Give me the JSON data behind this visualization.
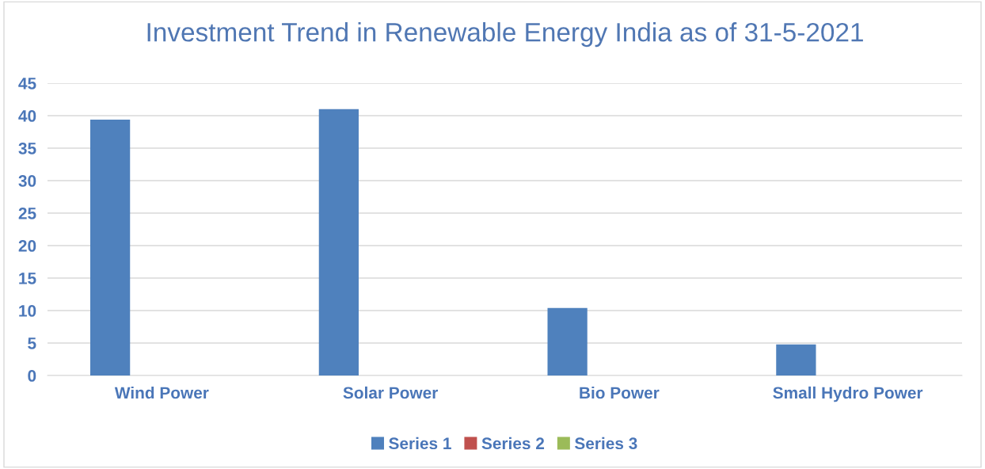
{
  "chart_data": {
    "type": "bar",
    "title": "Investment Trend in Renewable Energy India as of 31-5-2021",
    "categories": [
      "Wind Power",
      "Solar Power",
      "Bio Power",
      "Small Hydro Power"
    ],
    "series": [
      {
        "name": "Series 1",
        "color": "#4f81bd",
        "values": [
          39.4,
          41.0,
          10.4,
          4.8
        ]
      },
      {
        "name": "Series 2",
        "color": "#c0504d",
        "values": [
          null,
          null,
          null,
          null
        ]
      },
      {
        "name": "Series 3",
        "color": "#9bbb59",
        "values": [
          null,
          null,
          null,
          null
        ]
      }
    ],
    "ylim": [
      0,
      45
    ],
    "yticks": [
      0,
      5,
      10,
      15,
      20,
      25,
      30,
      35,
      40,
      45
    ],
    "grid": "y",
    "legend": "bottom"
  }
}
